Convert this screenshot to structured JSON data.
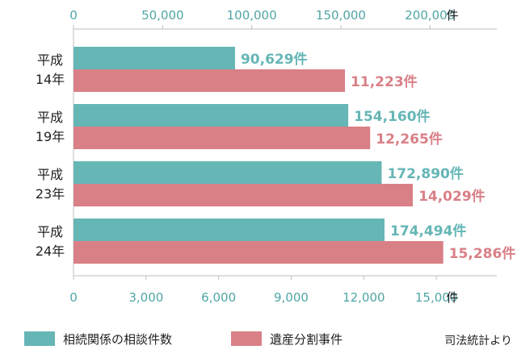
{
  "colors": {
    "consultation": "#66b6b6",
    "inheritance": "#d98087",
    "axis_top": "#4fa5a5",
    "axis_bottom": "#4fa5a5",
    "grid": "#bfbfbf"
  },
  "chart_data": {
    "type": "bar",
    "orientation": "horizontal",
    "categories": [
      [
        "平成",
        "14年"
      ],
      [
        "平成",
        "19年"
      ],
      [
        "平成",
        "23年"
      ],
      [
        "平成",
        "24年"
      ]
    ],
    "series": [
      {
        "name": "相続関係の相談件数",
        "axis": "top",
        "values": [
          90629,
          154160,
          172890,
          174494
        ],
        "labels": [
          "90,629件",
          "154,160件",
          "172,890件",
          "174,494件"
        ]
      },
      {
        "name": "遺産分割事件",
        "axis": "bottom",
        "values": [
          11223,
          12265,
          14029,
          15286
        ],
        "labels": [
          "11,223件",
          "12,265件",
          "14,029件",
          "15,286件"
        ]
      }
    ],
    "top_axis": {
      "range": [
        0,
        237500
      ],
      "ticks": [
        0,
        50000,
        100000,
        150000,
        200000
      ],
      "tick_labels": [
        "0",
        "50,000",
        "100,000",
        "150,000",
        "200,000"
      ],
      "unit": "件"
    },
    "bottom_axis": {
      "range": [
        0,
        17500
      ],
      "ticks": [
        0,
        3000,
        6000,
        9000,
        12000,
        15000
      ],
      "tick_labels": [
        "0",
        "3,000",
        "6,000",
        "9,000",
        "12,000",
        "15,000"
      ],
      "unit": "件"
    },
    "legend": [
      "相続関係の相談件数",
      "遺産分割事件"
    ],
    "legend_placement": "bottom",
    "source_note": "司法統計より",
    "grid": true
  }
}
